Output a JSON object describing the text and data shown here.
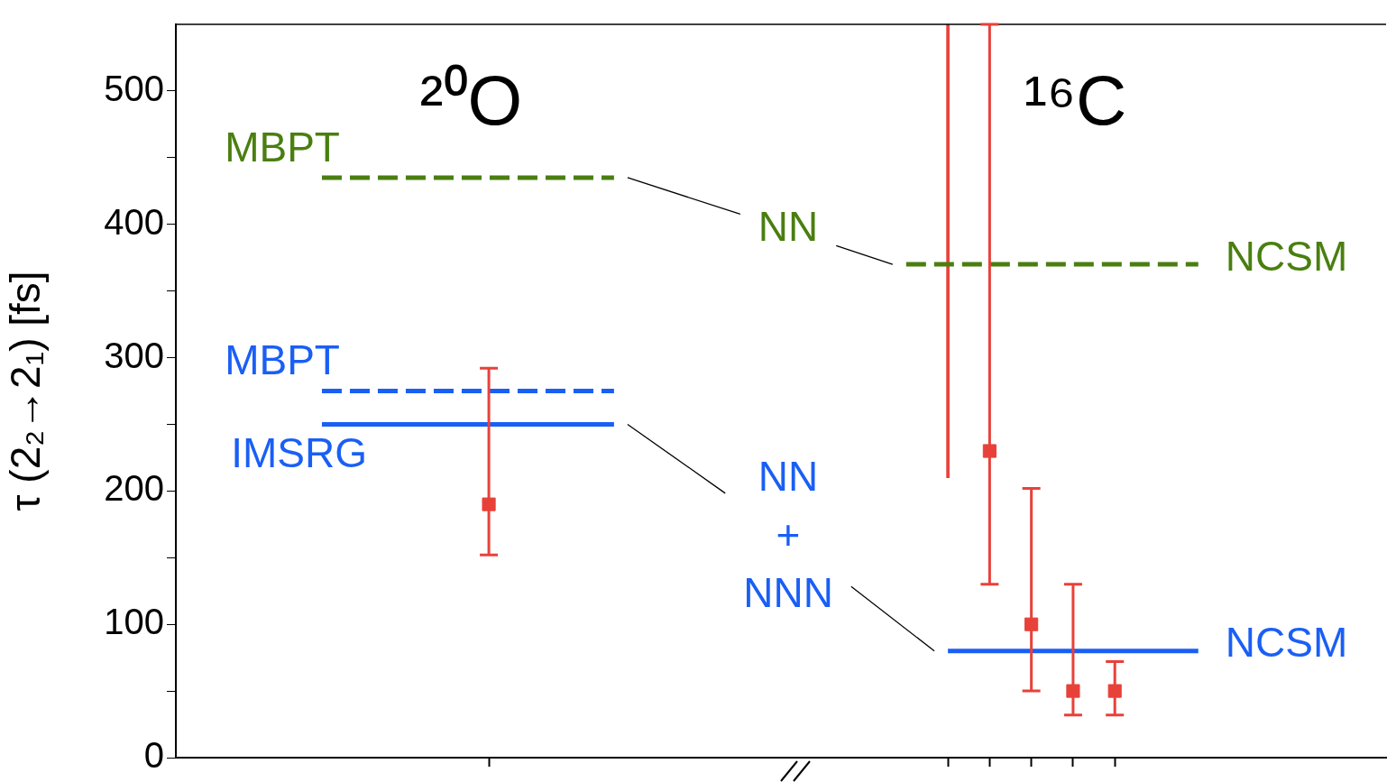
{
  "chart_data": {
    "type": "scatter",
    "ylabel": "τ (2₂→2₁) [fs]",
    "ylim": [
      0,
      550
    ],
    "yticks": [
      0,
      {
        "value": 50,
        "label": null
      },
      100,
      {
        "value": 150,
        "label": null
      },
      200,
      {
        "value": 250,
        "label": null
      },
      300,
      {
        "value": 350,
        "label": null
      },
      400,
      {
        "value": 450,
        "label": null
      },
      500
    ],
    "categories": [
      null,
      null,
      null,
      null,
      null,
      null,
      null,
      null,
      null,
      null,
      null,
      null,
      null,
      null,
      null,
      null,
      null,
      null,
      null,
      null,
      null,
      null,
      null,
      null,
      null,
      null,
      null,
      null,
      null
    ],
    "tick_labels": "y",
    "legend": "left",
    "marker": "square",
    "series": [
      {
        "name": "MBPT",
        "type": "line",
        "marker": "none",
        "line_style": "dashed",
        "color": "#4a7f10",
        "values": [
          null,
          null,
          null,
          435,
          435,
          435,
          435,
          435,
          435,
          435,
          435,
          null,
          null,
          null,
          null,
          null,
          null,
          null,
          null,
          null,
          null,
          null,
          null,
          null,
          null,
          null,
          null,
          null,
          null
        ]
      },
      {
        "name": "MBPT",
        "type": "line",
        "marker": "none",
        "line_style": "dashed",
        "color": "#1a5ff5",
        "values": [
          null,
          null,
          null,
          275,
          275,
          275,
          275,
          275,
          275,
          275,
          275,
          null,
          null,
          null,
          null,
          null,
          null,
          null,
          null,
          null,
          null,
          null,
          null,
          null,
          null,
          null,
          null,
          null,
          null
        ]
      },
      {
        "name": "IMSRG",
        "type": "line",
        "marker": "none",
        "line_style": "solid",
        "color": "#1a5ff5",
        "values": [
          null,
          null,
          null,
          250,
          250,
          250,
          250,
          250,
          250,
          250,
          250,
          null,
          null,
          null,
          null,
          null,
          null,
          null,
          null,
          null,
          null,
          null,
          null,
          null,
          null,
          null,
          null,
          null,
          null
        ]
      },
      {
        "name": "NCSM",
        "type": "line",
        "marker": "none",
        "line_style": "dashed",
        "color": "#4a7f10",
        "values": [
          null,
          null,
          null,
          null,
          null,
          null,
          null,
          null,
          null,
          null,
          null,
          null,
          null,
          null,
          null,
          null,
          null,
          370,
          370,
          370,
          370,
          370,
          370,
          370,
          370,
          null,
          null,
          null,
          null
        ]
      },
      {
        "name": "NCSM",
        "type": "line",
        "marker": "none",
        "line_style": "solid",
        "color": "#1a5ff5",
        "values": [
          null,
          null,
          null,
          null,
          null,
          null,
          null,
          null,
          null,
          null,
          null,
          null,
          null,
          null,
          null,
          null,
          null,
          null,
          80,
          80,
          80,
          80,
          80,
          80,
          80,
          null,
          null,
          null,
          null
        ]
      },
      {
        "color": "#e8413a",
        "values": [
          null,
          null,
          null,
          null,
          null,
          null,
          null,
          190,
          null,
          null,
          null,
          null,
          null,
          null,
          null,
          null,
          null,
          null,
          null,
          230,
          100,
          50,
          50,
          null,
          null,
          null,
          null,
          null,
          null
        ],
        "errors": [
          null,
          null,
          null,
          null,
          null,
          null,
          null,
          [
            152,
            292
          ],
          null,
          null,
          null,
          null,
          null,
          null,
          null,
          null,
          null,
          null,
          null,
          [
            130,
            550
          ],
          [
            50,
            202
          ],
          [
            32,
            130
          ],
          [
            32,
            72
          ],
          null,
          null,
          null,
          null,
          null,
          null
        ]
      },
      {
        "type": "bar",
        "color": "#e8413a",
        "base": [
          null,
          null,
          null,
          null,
          null,
          null,
          null,
          null,
          null,
          null,
          null,
          null,
          null,
          null,
          null,
          null,
          null,
          null,
          210,
          null,
          null,
          null,
          null,
          null,
          null,
          null,
          null,
          null,
          null
        ],
        "values": [
          null,
          null,
          null,
          null,
          null,
          null,
          null,
          null,
          null,
          null,
          null,
          null,
          null,
          null,
          null,
          null,
          null,
          null,
          340,
          null,
          null,
          null,
          null,
          null,
          null,
          null,
          null,
          null,
          null
        ]
      }
    ],
    "annotations": [
      "²⁰O",
      "¹⁶C",
      "NN",
      "NN\n+\nNNN"
    ]
  }
}
